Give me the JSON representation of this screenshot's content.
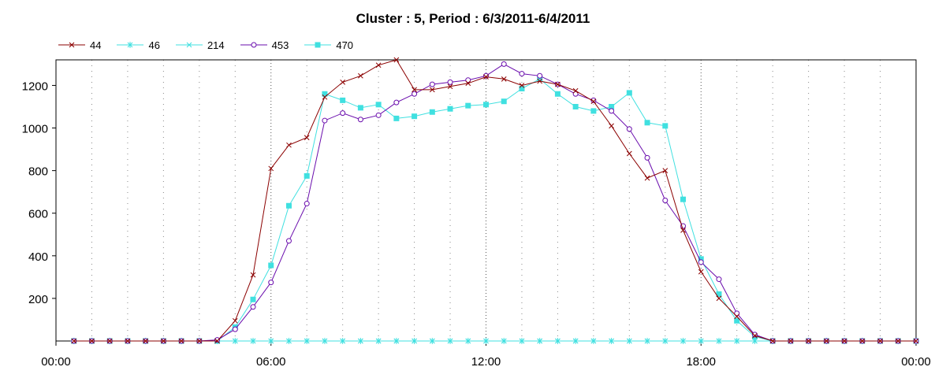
{
  "chart_data": {
    "type": "line",
    "title": "Cluster : 5, Period : 6/3/2011-6/4/2011",
    "xlabel": "",
    "ylabel": "",
    "x_ticks": [
      "00:00",
      "06:00",
      "12:00",
      "18:00",
      "00:00"
    ],
    "y_ticks": [
      200,
      400,
      600,
      800,
      1000,
      1200
    ],
    "xlim_hours": [
      0,
      24
    ],
    "ylim": [
      0,
      1320
    ],
    "grid": "vertical dotted",
    "legend_position": "top-left",
    "series": [
      {
        "name": "44",
        "color": "#8b0000",
        "marker": "x",
        "points": [
          [
            0.5,
            0
          ],
          [
            1,
            0
          ],
          [
            1.5,
            0
          ],
          [
            2,
            0
          ],
          [
            2.5,
            0
          ],
          [
            3,
            0
          ],
          [
            3.5,
            0
          ],
          [
            4,
            0
          ],
          [
            4.5,
            0
          ],
          [
            5,
            95
          ],
          [
            5.5,
            310
          ],
          [
            6,
            810
          ],
          [
            6.5,
            920
          ],
          [
            7,
            955
          ],
          [
            7.5,
            1145
          ],
          [
            8,
            1215
          ],
          [
            8.5,
            1245
          ],
          [
            9,
            1295
          ],
          [
            9.5,
            1320
          ],
          [
            10,
            1180
          ],
          [
            10.5,
            1180
          ],
          [
            11,
            1195
          ],
          [
            11.5,
            1210
          ],
          [
            12,
            1240
          ],
          [
            12.5,
            1230
          ],
          [
            13,
            1200
          ],
          [
            13.5,
            1220
          ],
          [
            14,
            1205
          ],
          [
            14.5,
            1175
          ],
          [
            15,
            1125
          ],
          [
            15.5,
            1010
          ],
          [
            16,
            880
          ],
          [
            16.5,
            765
          ],
          [
            17,
            800
          ],
          [
            17.5,
            520
          ],
          [
            18,
            325
          ],
          [
            18.5,
            200
          ],
          [
            19,
            115
          ],
          [
            19.5,
            25
          ],
          [
            20,
            0
          ],
          [
            20.5,
            0
          ],
          [
            21,
            0
          ],
          [
            21.5,
            0
          ],
          [
            22,
            0
          ],
          [
            22.5,
            0
          ],
          [
            23,
            0
          ],
          [
            23.5,
            0
          ],
          [
            24,
            0
          ]
        ]
      },
      {
        "name": "46",
        "color": "#40e0e0",
        "marker": "asterisk",
        "points": [
          [
            0.5,
            0
          ],
          [
            1,
            0
          ],
          [
            1.5,
            0
          ],
          [
            2,
            0
          ],
          [
            2.5,
            0
          ],
          [
            3,
            0
          ],
          [
            3.5,
            0
          ],
          [
            4,
            0
          ],
          [
            4.5,
            0
          ],
          [
            5,
            0
          ],
          [
            5.5,
            0
          ],
          [
            6,
            0
          ],
          [
            6.5,
            0
          ],
          [
            7,
            0
          ],
          [
            7.5,
            0
          ],
          [
            8,
            0
          ],
          [
            8.5,
            0
          ],
          [
            9,
            0
          ],
          [
            9.5,
            0
          ],
          [
            10,
            0
          ],
          [
            10.5,
            0
          ],
          [
            11,
            0
          ],
          [
            11.5,
            0
          ],
          [
            12,
            0
          ],
          [
            12.5,
            0
          ],
          [
            13,
            0
          ],
          [
            13.5,
            0
          ],
          [
            14,
            0
          ],
          [
            14.5,
            0
          ],
          [
            15,
            0
          ],
          [
            15.5,
            0
          ],
          [
            16,
            0
          ],
          [
            16.5,
            0
          ],
          [
            17,
            0
          ],
          [
            17.5,
            0
          ],
          [
            18,
            0
          ],
          [
            18.5,
            0
          ],
          [
            19,
            0
          ],
          [
            19.5,
            0
          ],
          [
            20,
            0
          ],
          [
            20.5,
            0
          ],
          [
            21,
            0
          ],
          [
            21.5,
            0
          ],
          [
            22,
            0
          ],
          [
            22.5,
            0
          ],
          [
            23,
            0
          ],
          [
            23.5,
            0
          ],
          [
            24,
            0
          ]
        ]
      },
      {
        "name": "214",
        "color": "#40e0e0",
        "marker": "x",
        "points": [
          [
            0.5,
            0
          ],
          [
            1,
            0
          ],
          [
            1.5,
            0
          ],
          [
            2,
            0
          ],
          [
            2.5,
            0
          ],
          [
            3,
            0
          ],
          [
            3.5,
            0
          ],
          [
            4,
            0
          ],
          [
            4.5,
            0
          ],
          [
            5,
            0
          ],
          [
            5.5,
            0
          ],
          [
            6,
            0
          ],
          [
            6.5,
            0
          ],
          [
            7,
            0
          ],
          [
            7.5,
            0
          ],
          [
            8,
            0
          ],
          [
            8.5,
            0
          ],
          [
            9,
            0
          ],
          [
            9.5,
            0
          ],
          [
            10,
            0
          ],
          [
            10.5,
            0
          ],
          [
            11,
            0
          ],
          [
            11.5,
            0
          ],
          [
            12,
            0
          ],
          [
            12.5,
            0
          ],
          [
            13,
            0
          ],
          [
            13.5,
            0
          ],
          [
            14,
            0
          ],
          [
            14.5,
            0
          ],
          [
            15,
            0
          ],
          [
            15.5,
            0
          ],
          [
            16,
            0
          ],
          [
            16.5,
            0
          ],
          [
            17,
            0
          ],
          [
            17.5,
            0
          ],
          [
            18,
            0
          ],
          [
            18.5,
            0
          ],
          [
            19,
            0
          ],
          [
            19.5,
            0
          ],
          [
            20,
            0
          ],
          [
            20.5,
            0
          ],
          [
            21,
            0
          ],
          [
            21.5,
            0
          ],
          [
            22,
            0
          ],
          [
            22.5,
            0
          ],
          [
            23,
            0
          ],
          [
            23.5,
            0
          ],
          [
            24,
            0
          ]
        ]
      },
      {
        "name": "453",
        "color": "#6a0dad",
        "marker": "circle",
        "points": [
          [
            0.5,
            0
          ],
          [
            1,
            0
          ],
          [
            1.5,
            0
          ],
          [
            2,
            0
          ],
          [
            2.5,
            0
          ],
          [
            3,
            0
          ],
          [
            3.5,
            0
          ],
          [
            4,
            0
          ],
          [
            4.5,
            5
          ],
          [
            5,
            55
          ],
          [
            5.5,
            160
          ],
          [
            6,
            275
          ],
          [
            6.5,
            470
          ],
          [
            7,
            645
          ],
          [
            7.5,
            1035
          ],
          [
            8,
            1070
          ],
          [
            8.5,
            1040
          ],
          [
            9,
            1060
          ],
          [
            9.5,
            1120
          ],
          [
            10,
            1160
          ],
          [
            10.5,
            1205
          ],
          [
            11,
            1215
          ],
          [
            11.5,
            1225
          ],
          [
            12,
            1245
          ],
          [
            12.5,
            1300
          ],
          [
            13,
            1255
          ],
          [
            13.5,
            1245
          ],
          [
            14,
            1205
          ],
          [
            14.5,
            1160
          ],
          [
            15,
            1130
          ],
          [
            15.5,
            1080
          ],
          [
            16,
            995
          ],
          [
            16.5,
            860
          ],
          [
            17,
            660
          ],
          [
            17.5,
            540
          ],
          [
            18,
            370
          ],
          [
            18.5,
            290
          ],
          [
            19,
            130
          ],
          [
            19.5,
            30
          ],
          [
            20,
            0
          ],
          [
            20.5,
            0
          ],
          [
            21,
            0
          ],
          [
            21.5,
            0
          ],
          [
            22,
            0
          ],
          [
            22.5,
            0
          ],
          [
            23,
            0
          ],
          [
            23.5,
            0
          ],
          [
            24,
            0
          ]
        ]
      },
      {
        "name": "470",
        "color": "#40e0e0",
        "marker": "square",
        "points": [
          [
            0.5,
            0
          ],
          [
            1,
            0
          ],
          [
            1.5,
            0
          ],
          [
            2,
            0
          ],
          [
            2.5,
            0
          ],
          [
            3,
            0
          ],
          [
            3.5,
            0
          ],
          [
            4,
            0
          ],
          [
            4.5,
            0
          ],
          [
            5,
            65
          ],
          [
            5.5,
            195
          ],
          [
            6,
            355
          ],
          [
            6.5,
            635
          ],
          [
            7,
            775
          ],
          [
            7.5,
            1160
          ],
          [
            8,
            1130
          ],
          [
            8.5,
            1095
          ],
          [
            9,
            1110
          ],
          [
            9.5,
            1045
          ],
          [
            10,
            1055
          ],
          [
            10.5,
            1075
          ],
          [
            11,
            1090
          ],
          [
            11.5,
            1105
          ],
          [
            12,
            1110
          ],
          [
            12.5,
            1125
          ],
          [
            13,
            1185
          ],
          [
            13.5,
            1230
          ],
          [
            14,
            1160
          ],
          [
            14.5,
            1100
          ],
          [
            15,
            1080
          ],
          [
            15.5,
            1100
          ],
          [
            16,
            1165
          ],
          [
            16.5,
            1025
          ],
          [
            17,
            1010
          ],
          [
            17.5,
            665
          ],
          [
            18,
            385
          ],
          [
            18.5,
            220
          ],
          [
            19,
            95
          ],
          [
            19.5,
            20
          ],
          [
            20,
            0
          ],
          [
            20.5,
            0
          ],
          [
            21,
            0
          ],
          [
            21.5,
            0
          ],
          [
            22,
            0
          ],
          [
            22.5,
            0
          ],
          [
            23,
            0
          ],
          [
            23.5,
            0
          ],
          [
            24,
            0
          ]
        ]
      }
    ]
  }
}
